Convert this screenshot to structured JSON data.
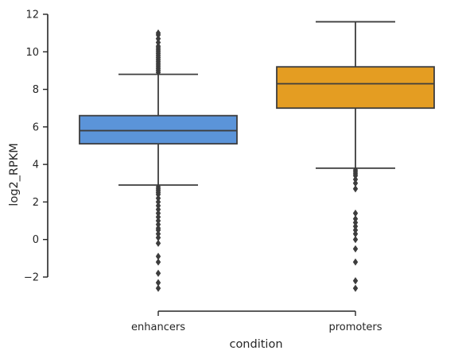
{
  "chart_data": {
    "type": "box",
    "xlabel": "condition",
    "ylabel": "log2_RPKM",
    "ylim": [
      -2,
      12
    ],
    "yticks": [
      -2,
      0,
      2,
      4,
      6,
      8,
      10,
      12
    ],
    "ytick_labels": [
      "−2",
      "0",
      "2",
      "4",
      "6",
      "8",
      "10",
      "12"
    ],
    "grid": false,
    "categories": [
      "enhancers",
      "promoters"
    ],
    "series": [
      {
        "category": "enhancers",
        "color": "#5b94d9",
        "whisker_low": 2.9,
        "q1": 5.1,
        "median": 5.8,
        "q3": 6.6,
        "whisker_high": 8.8,
        "outliers": [
          -2.6,
          -2.3,
          -1.8,
          -1.2,
          -0.9,
          -0.2,
          0.1,
          0.3,
          0.5,
          0.6,
          0.8,
          1.0,
          1.2,
          1.4,
          1.6,
          1.8,
          2.0,
          2.2,
          2.4,
          2.5,
          2.6,
          2.7,
          2.8,
          8.9,
          9.0,
          9.1,
          9.2,
          9.3,
          9.4,
          9.5,
          9.6,
          9.7,
          9.8,
          9.9,
          10.0,
          10.1,
          10.2,
          10.3,
          10.5,
          10.7,
          10.9,
          11.0
        ]
      },
      {
        "category": "promoters",
        "color": "#e49d22",
        "whisker_low": 3.8,
        "q1": 7.0,
        "median": 8.3,
        "q3": 9.2,
        "whisker_high": 11.6,
        "outliers": [
          -2.6,
          -2.2,
          -1.2,
          -0.5,
          0.0,
          0.3,
          0.5,
          0.7,
          0.9,
          1.1,
          1.4,
          2.7,
          3.0,
          3.2,
          3.4,
          3.5,
          3.6,
          3.7
        ]
      }
    ]
  }
}
